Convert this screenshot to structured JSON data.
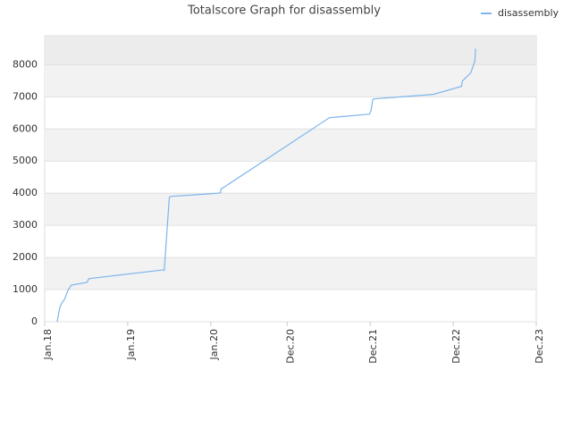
{
  "chart_data": {
    "type": "line",
    "title": "Totalscore Graph for disassembly",
    "x": [
      2018.15,
      2018.18,
      2018.2,
      2018.24,
      2018.28,
      2018.32,
      2018.51,
      2018.53,
      2019.43,
      2019.44,
      2019.5,
      2019.51,
      2019.99,
      2020.12,
      2020.12,
      2021.43,
      2021.91,
      2021.93,
      2021.95,
      2021.96,
      2022.68,
      2023.02,
      2023.03,
      2023.13,
      2023.18,
      2023.19
    ],
    "series": [
      {
        "name": "disassembly",
        "color": "#7cb5ec",
        "values": [
          0,
          420,
          560,
          700,
          975,
          1140,
          1225,
          1340,
          1615,
          1600,
          3840,
          3900,
          3980,
          4010,
          4120,
          6350,
          6460,
          6570,
          6900,
          6935,
          7075,
          7325,
          7490,
          7740,
          8100,
          8500
        ]
      }
    ],
    "xlim": [
      2018,
      2023.92
    ],
    "xticks": [
      {
        "value": 2018,
        "label": "Jan.18"
      },
      {
        "value": 2019,
        "label": "Jan.19"
      },
      {
        "value": 2020,
        "label": "Jan.20"
      },
      {
        "value": 2020.92,
        "label": "Dec.20"
      },
      {
        "value": 2021.92,
        "label": "Dec.21"
      },
      {
        "value": 2022.92,
        "label": "Dec.22"
      },
      {
        "value": 2023.92,
        "label": "Dec.23"
      }
    ],
    "ylim": [
      0,
      8900
    ],
    "yticks": [
      0,
      1000,
      2000,
      3000,
      4000,
      5000,
      6000,
      7000,
      8000
    ],
    "grid": true,
    "legend": "top-right"
  }
}
